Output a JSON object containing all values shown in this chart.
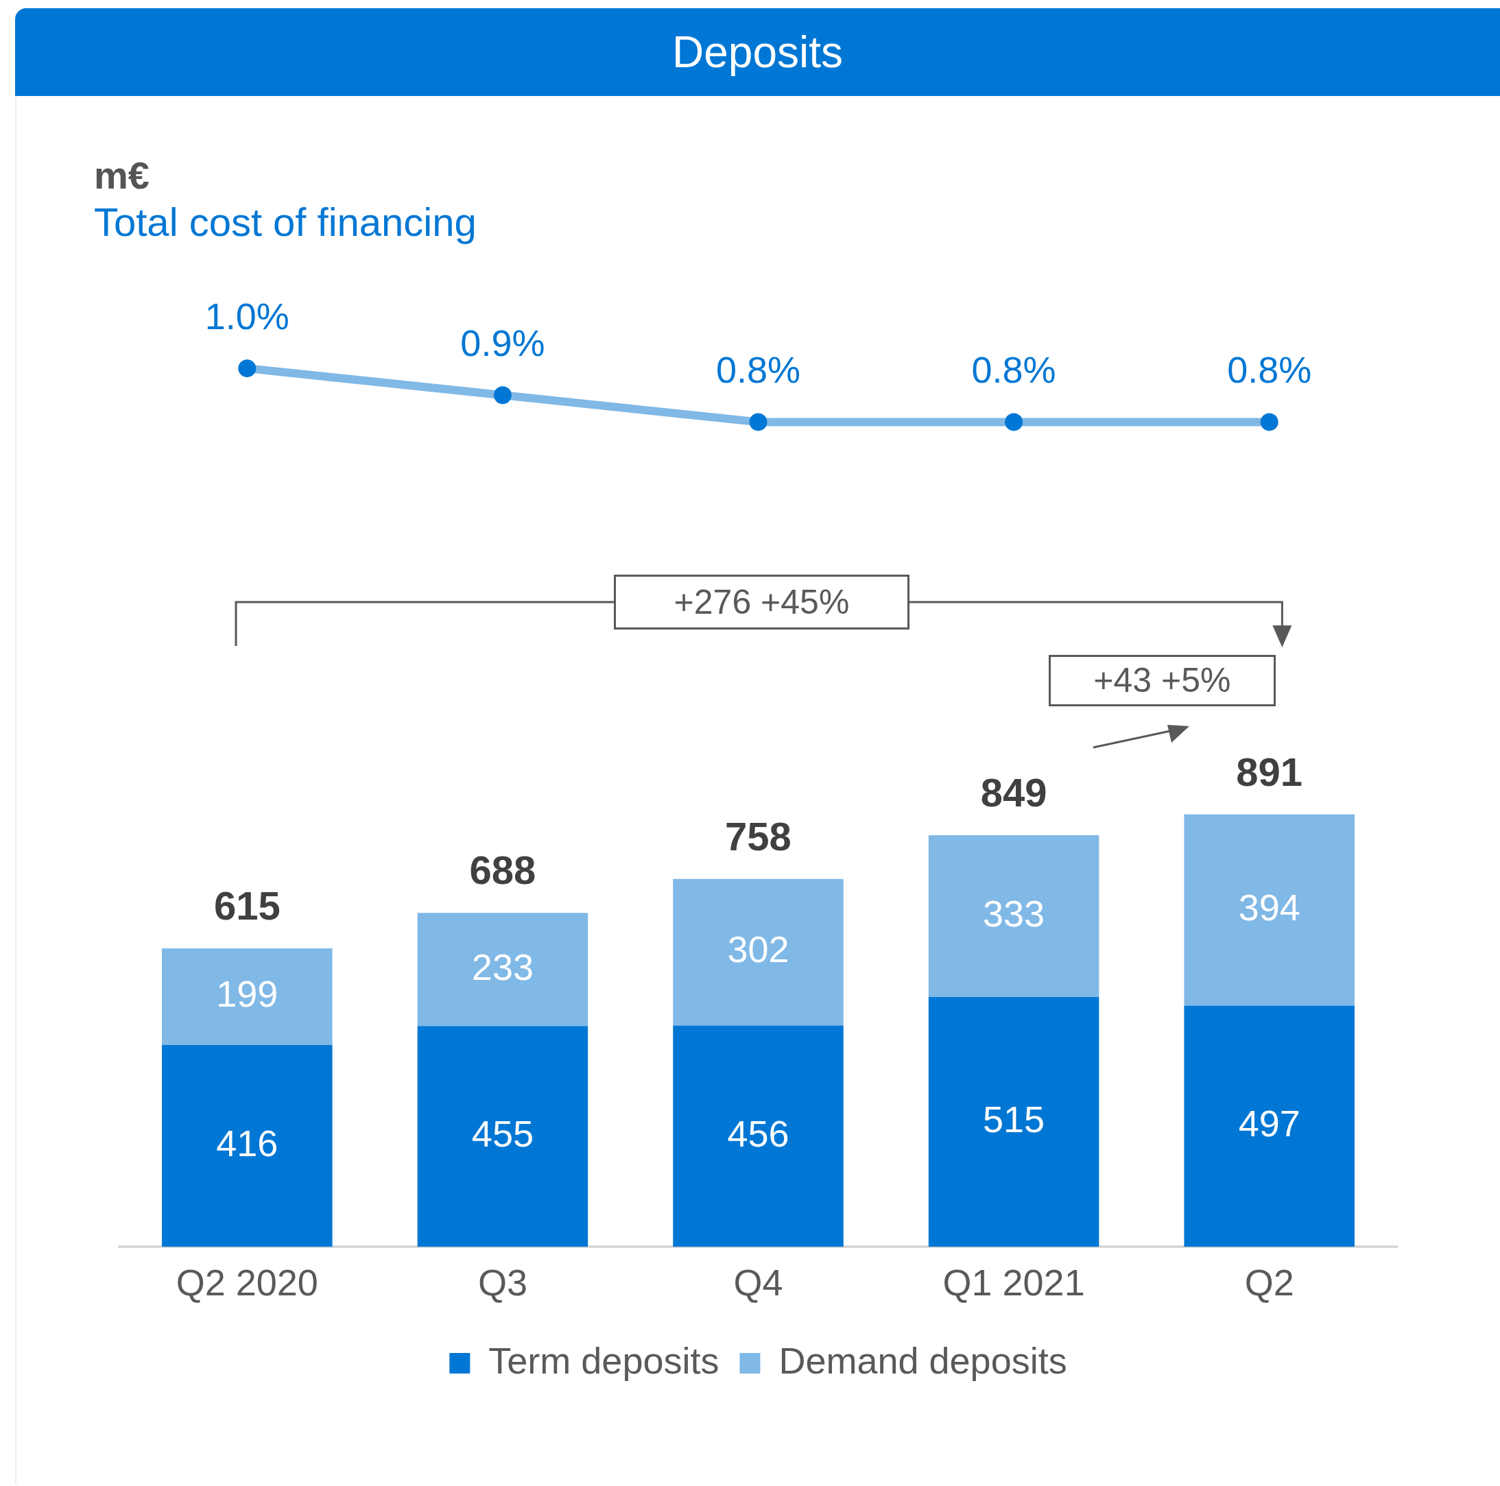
{
  "chart_data": [
    {
      "type": "line",
      "title": "Deposits",
      "categories": [
        null,
        null,
        null,
        null,
        null
      ],
      "series": [
        {
          "name": "Total cost of financing",
          "color": "#80b8e6",
          "colors": [
            "#0077d4",
            "#0077d4",
            "#0077d4",
            "#0077d4",
            "#0077d4"
          ],
          "marker": "circle",
          "values": [
            1.0,
            0.9,
            0.8,
            0.8,
            0.8
          ],
          "value_labels": [
            "1.0%",
            "0.9%",
            "0.8%",
            "0.8%",
            "0.8%"
          ]
        }
      ],
      "tick_labels": false,
      "grid": false,
      "annotations": [
        "m€"
      ]
    },
    {
      "type": "bar",
      "stacked": true,
      "categories": [
        "Q2 2020",
        "Q3",
        "Q4",
        "Q1 2021",
        "Q2"
      ],
      "series": [
        {
          "name": "Term deposits",
          "color": "#0077d4",
          "values": [
            416,
            455,
            456,
            515,
            497
          ],
          "value_labels": [
            "416",
            "455",
            "456",
            "515",
            "497"
          ]
        },
        {
          "name": "Demand deposits",
          "color": "#80b8e6",
          "values": [
            199,
            233,
            302,
            333,
            394
          ],
          "value_labels": [
            "199",
            "233",
            "302",
            "333",
            "394"
          ]
        }
      ],
      "totals": [
        "615",
        "688",
        "758",
        "849",
        "891"
      ],
      "tick_labels": "x",
      "grid": false,
      "legend": "bottom",
      "annotations": [
        "+276 +45%",
        "+43 +5%"
      ]
    }
  ]
}
